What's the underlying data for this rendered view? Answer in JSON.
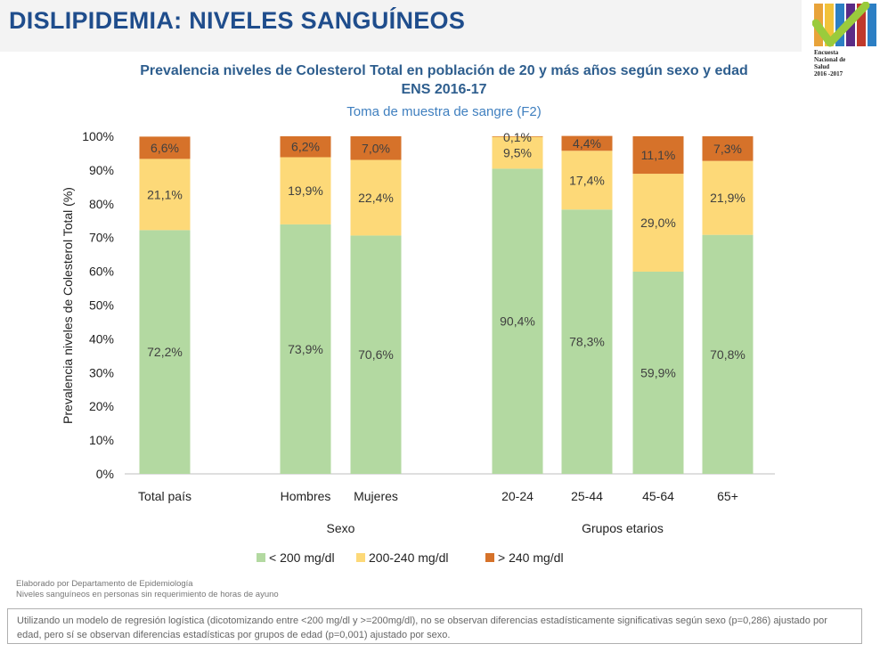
{
  "header": {
    "title": "DISLIPIDEMIA: NIVELES SANGUÍNEOS"
  },
  "logo": {
    "lines": [
      "Encuesta",
      "Nacional de",
      "Salud",
      "2016 -2017"
    ],
    "colors": [
      "#e8a33a",
      "#9acb3c",
      "#5b2b86",
      "#2c7fc4"
    ]
  },
  "chart_data": {
    "type": "bar",
    "stacked": true,
    "title_line1": "Prevalencia niveles de Colesterol  Total en población de 20 y más años según sexo y edad",
    "title_line2": "ENS  2016-17",
    "subtitle": "Toma de muestra de sangre (F2)",
    "ylabel": "Prevalencia niveles de Colesterol  Total  (%)",
    "ylim": [
      0,
      100
    ],
    "yticks": [
      "0%",
      "10%",
      "20%",
      "30%",
      "40%",
      "50%",
      "60%",
      "70%",
      "80%",
      "90%",
      "100%"
    ],
    "categories": [
      "Total país",
      "Hombres",
      "Mujeres",
      "20-24",
      "25-44",
      "45-64",
      "65+"
    ],
    "groups": [
      {
        "label": "",
        "categories": [
          "Total país"
        ]
      },
      {
        "label": "Sexo",
        "categories": [
          "Hombres",
          "Mujeres"
        ]
      },
      {
        "label": "Grupos etarios",
        "categories": [
          "20-24",
          "25-44",
          "45-64",
          "65+"
        ]
      }
    ],
    "series": [
      {
        "name": "< 200 mg/dl",
        "color": "#b3d9a1",
        "values": [
          72.2,
          73.9,
          70.6,
          90.4,
          78.3,
          59.9,
          70.8
        ],
        "labels": [
          "72,2%",
          "73,9%",
          "70,6%",
          "90,4%",
          "78,3%",
          "59,9%",
          "70,8%"
        ]
      },
      {
        "name": "200-240 mg/dl",
        "color": "#fdd978",
        "values": [
          21.1,
          19.9,
          22.4,
          9.5,
          17.4,
          29.0,
          21.9
        ],
        "labels": [
          "21,1%",
          "19,9%",
          "22,4%",
          "9,5%",
          "17,4%",
          "29,0%",
          "21,9%"
        ]
      },
      {
        "name": "> 240 mg/dl",
        "color": "#d6722a",
        "values": [
          6.6,
          6.2,
          7.0,
          0.1,
          4.4,
          11.1,
          7.3
        ],
        "labels": [
          "6,6%",
          "6,2%",
          "7,0%",
          "0,1%",
          "4,4%",
          "11,1%",
          "7,3%"
        ]
      }
    ],
    "grid": false,
    "legend_position": "bottom"
  },
  "notes": {
    "line1": "Elaborado por Departamento de Epidemiología",
    "line2": "Niveles sanguíneos en personas sin requerimiento de horas de ayuno"
  },
  "stat_note": "Utilizando un modelo de regresión logística (dicotomizando entre <200 mg/dl y >=200mg/dl), no se observan diferencias estadísticamente significativas según sexo (p=0,286) ajustado por edad, pero sí se observan diferencias estadísticas por grupos de edad (p=0,001) ajustado por sexo."
}
